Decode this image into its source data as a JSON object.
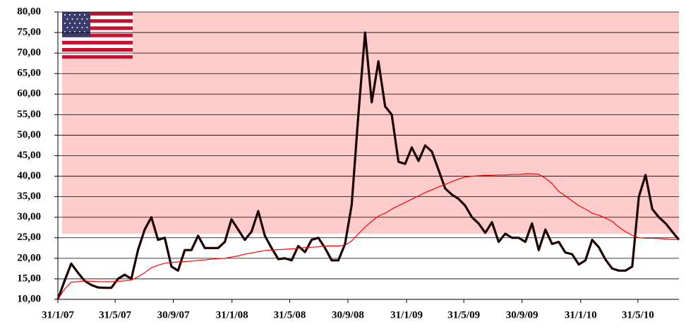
{
  "chart_data": {
    "type": "line",
    "band_ylim": [
      26,
      80
    ],
    "band_color": "#ffcccc",
    "grid": true,
    "xlim": [
      "2007-01-31",
      "2010-08-25"
    ],
    "xticks": [
      {
        "value": "2007-01-31",
        "label": "31/1/07"
      },
      {
        "value": "2007-05-31",
        "label": "31/5/07"
      },
      {
        "value": "2007-09-30",
        "label": "30/9/07"
      },
      {
        "value": "2008-01-31",
        "label": "31/1/08"
      },
      {
        "value": "2008-05-31",
        "label": "31/5/08"
      },
      {
        "value": "2008-09-30",
        "label": "30/9/08"
      },
      {
        "value": "2009-01-31",
        "label": "31/1/09"
      },
      {
        "value": "2009-05-31",
        "label": "31/5/09"
      },
      {
        "value": "2009-09-30",
        "label": "30/9/09"
      },
      {
        "value": "2010-01-31",
        "label": "31/1/10"
      },
      {
        "value": "2010-05-31",
        "label": "31/5/10"
      }
    ],
    "ylim": [
      10,
      80
    ],
    "yticks": [
      {
        "value": 10,
        "label": "10,00"
      },
      {
        "value": 15,
        "label": "15,00"
      },
      {
        "value": 20,
        "label": "20,00"
      },
      {
        "value": 25,
        "label": "25,00"
      },
      {
        "value": 30,
        "label": "30,00"
      },
      {
        "value": 35,
        "label": "35,00"
      },
      {
        "value": 40,
        "label": "40,00"
      },
      {
        "value": 45,
        "label": "45,00"
      },
      {
        "value": 50,
        "label": "50,00"
      },
      {
        "value": 55,
        "label": "55,00"
      },
      {
        "value": 60,
        "label": "60,00"
      },
      {
        "value": 65,
        "label": "65,00"
      },
      {
        "value": 70,
        "label": "70,00"
      },
      {
        "value": 75,
        "label": "75,00"
      },
      {
        "value": 80,
        "label": "80,00"
      }
    ],
    "x": [
      "2007-01-31",
      "2007-02-14",
      "2007-02-28",
      "2007-03-14",
      "2007-03-28",
      "2007-04-11",
      "2007-04-25",
      "2007-05-09",
      "2007-05-23",
      "2007-06-06",
      "2007-06-20",
      "2007-07-04",
      "2007-07-18",
      "2007-08-01",
      "2007-08-15",
      "2007-08-29",
      "2007-09-12",
      "2007-09-26",
      "2007-10-10",
      "2007-10-24",
      "2007-11-07",
      "2007-11-21",
      "2007-12-05",
      "2007-12-19",
      "2008-01-02",
      "2008-01-16",
      "2008-01-30",
      "2008-02-13",
      "2008-02-27",
      "2008-03-12",
      "2008-03-26",
      "2008-04-09",
      "2008-04-23",
      "2008-05-07",
      "2008-05-21",
      "2008-06-04",
      "2008-06-18",
      "2008-07-02",
      "2008-07-16",
      "2008-07-30",
      "2008-08-13",
      "2008-08-27",
      "2008-09-10",
      "2008-09-24",
      "2008-10-08",
      "2008-10-22",
      "2008-11-05",
      "2008-11-19",
      "2008-12-03",
      "2008-12-17",
      "2008-12-31",
      "2009-01-14",
      "2009-01-28",
      "2009-02-11",
      "2009-02-25",
      "2009-03-11",
      "2009-03-25",
      "2009-04-08",
      "2009-04-22",
      "2009-05-06",
      "2009-05-20",
      "2009-06-03",
      "2009-06-17",
      "2009-07-01",
      "2009-07-15",
      "2009-07-29",
      "2009-08-12",
      "2009-08-26",
      "2009-09-09",
      "2009-09-23",
      "2009-10-07",
      "2009-10-21",
      "2009-11-04",
      "2009-11-18",
      "2009-12-02",
      "2009-12-16",
      "2009-12-30",
      "2010-01-13",
      "2010-01-27",
      "2010-02-10",
      "2010-02-24",
      "2010-03-10",
      "2010-03-24",
      "2010-04-07",
      "2010-04-21",
      "2010-05-05",
      "2010-05-19",
      "2010-06-02",
      "2010-06-16",
      "2010-06-30",
      "2010-07-14",
      "2010-07-28",
      "2010-08-11",
      "2010-08-25"
    ],
    "series": [
      {
        "color": "#1a0000",
        "width": 3.2,
        "values": [
          10,
          14.5,
          18.7,
          16.5,
          14.5,
          13.5,
          12.9,
          12.8,
          12.8,
          15,
          16,
          15,
          22,
          27,
          30,
          24.5,
          25,
          18,
          17,
          22,
          22,
          25.5,
          22.5,
          22.5,
          22.5,
          24,
          29.5,
          27,
          24.5,
          26.5,
          31.5,
          25.5,
          22.5,
          19.8,
          20,
          19.5,
          23,
          21.5,
          24.5,
          25,
          22.5,
          19.5,
          19.5,
          23.5,
          33,
          55,
          75,
          58,
          68,
          57,
          55,
          43.5,
          43,
          47,
          43.7,
          47.5,
          46,
          41.5,
          37,
          35.5,
          34.5,
          32.8,
          30,
          28.5,
          26.2,
          28.8,
          24,
          26,
          25,
          25,
          24,
          28.5,
          22,
          27,
          23.5,
          24,
          21.4,
          21,
          18.5,
          19.5,
          24.5,
          22.7,
          19.7,
          17.5,
          17,
          17,
          18,
          35,
          40.3,
          32,
          30,
          28.5,
          26.5,
          24.5
        ]
      },
      {
        "color": "#ff0000",
        "width": 1.2,
        "values": [
          10,
          12.5,
          14.2,
          14.3,
          14.5,
          14.4,
          14.3,
          14.3,
          14.3,
          14.4,
          14.5,
          14.7,
          15.5,
          16.5,
          17.7,
          18.3,
          18.8,
          19,
          19.1,
          19.2,
          19.3,
          19.5,
          19.6,
          19.8,
          19.9,
          20,
          20.3,
          20.6,
          21,
          21.3,
          21.6,
          21.9,
          22,
          22.1,
          22.2,
          22.3,
          22.4,
          22.6,
          22.7,
          22.8,
          23,
          23,
          23,
          23.2,
          24.2,
          26,
          27.6,
          29,
          30.3,
          31,
          32,
          32.8,
          33.6,
          34.4,
          35.2,
          36,
          36.7,
          37.4,
          38,
          38.7,
          39.3,
          39.8,
          40,
          40.1,
          40.2,
          40.2,
          40.3,
          40.3,
          40.4,
          40.4,
          40.6,
          40.6,
          40.5,
          39.5,
          38.2,
          36.3,
          35.2,
          34,
          32.8,
          32,
          31,
          30.5,
          29.8,
          29,
          27.6,
          26.5,
          25.6,
          25,
          24.9,
          24.9,
          24.8,
          24.7,
          24.6,
          24.6
        ]
      }
    ]
  }
}
